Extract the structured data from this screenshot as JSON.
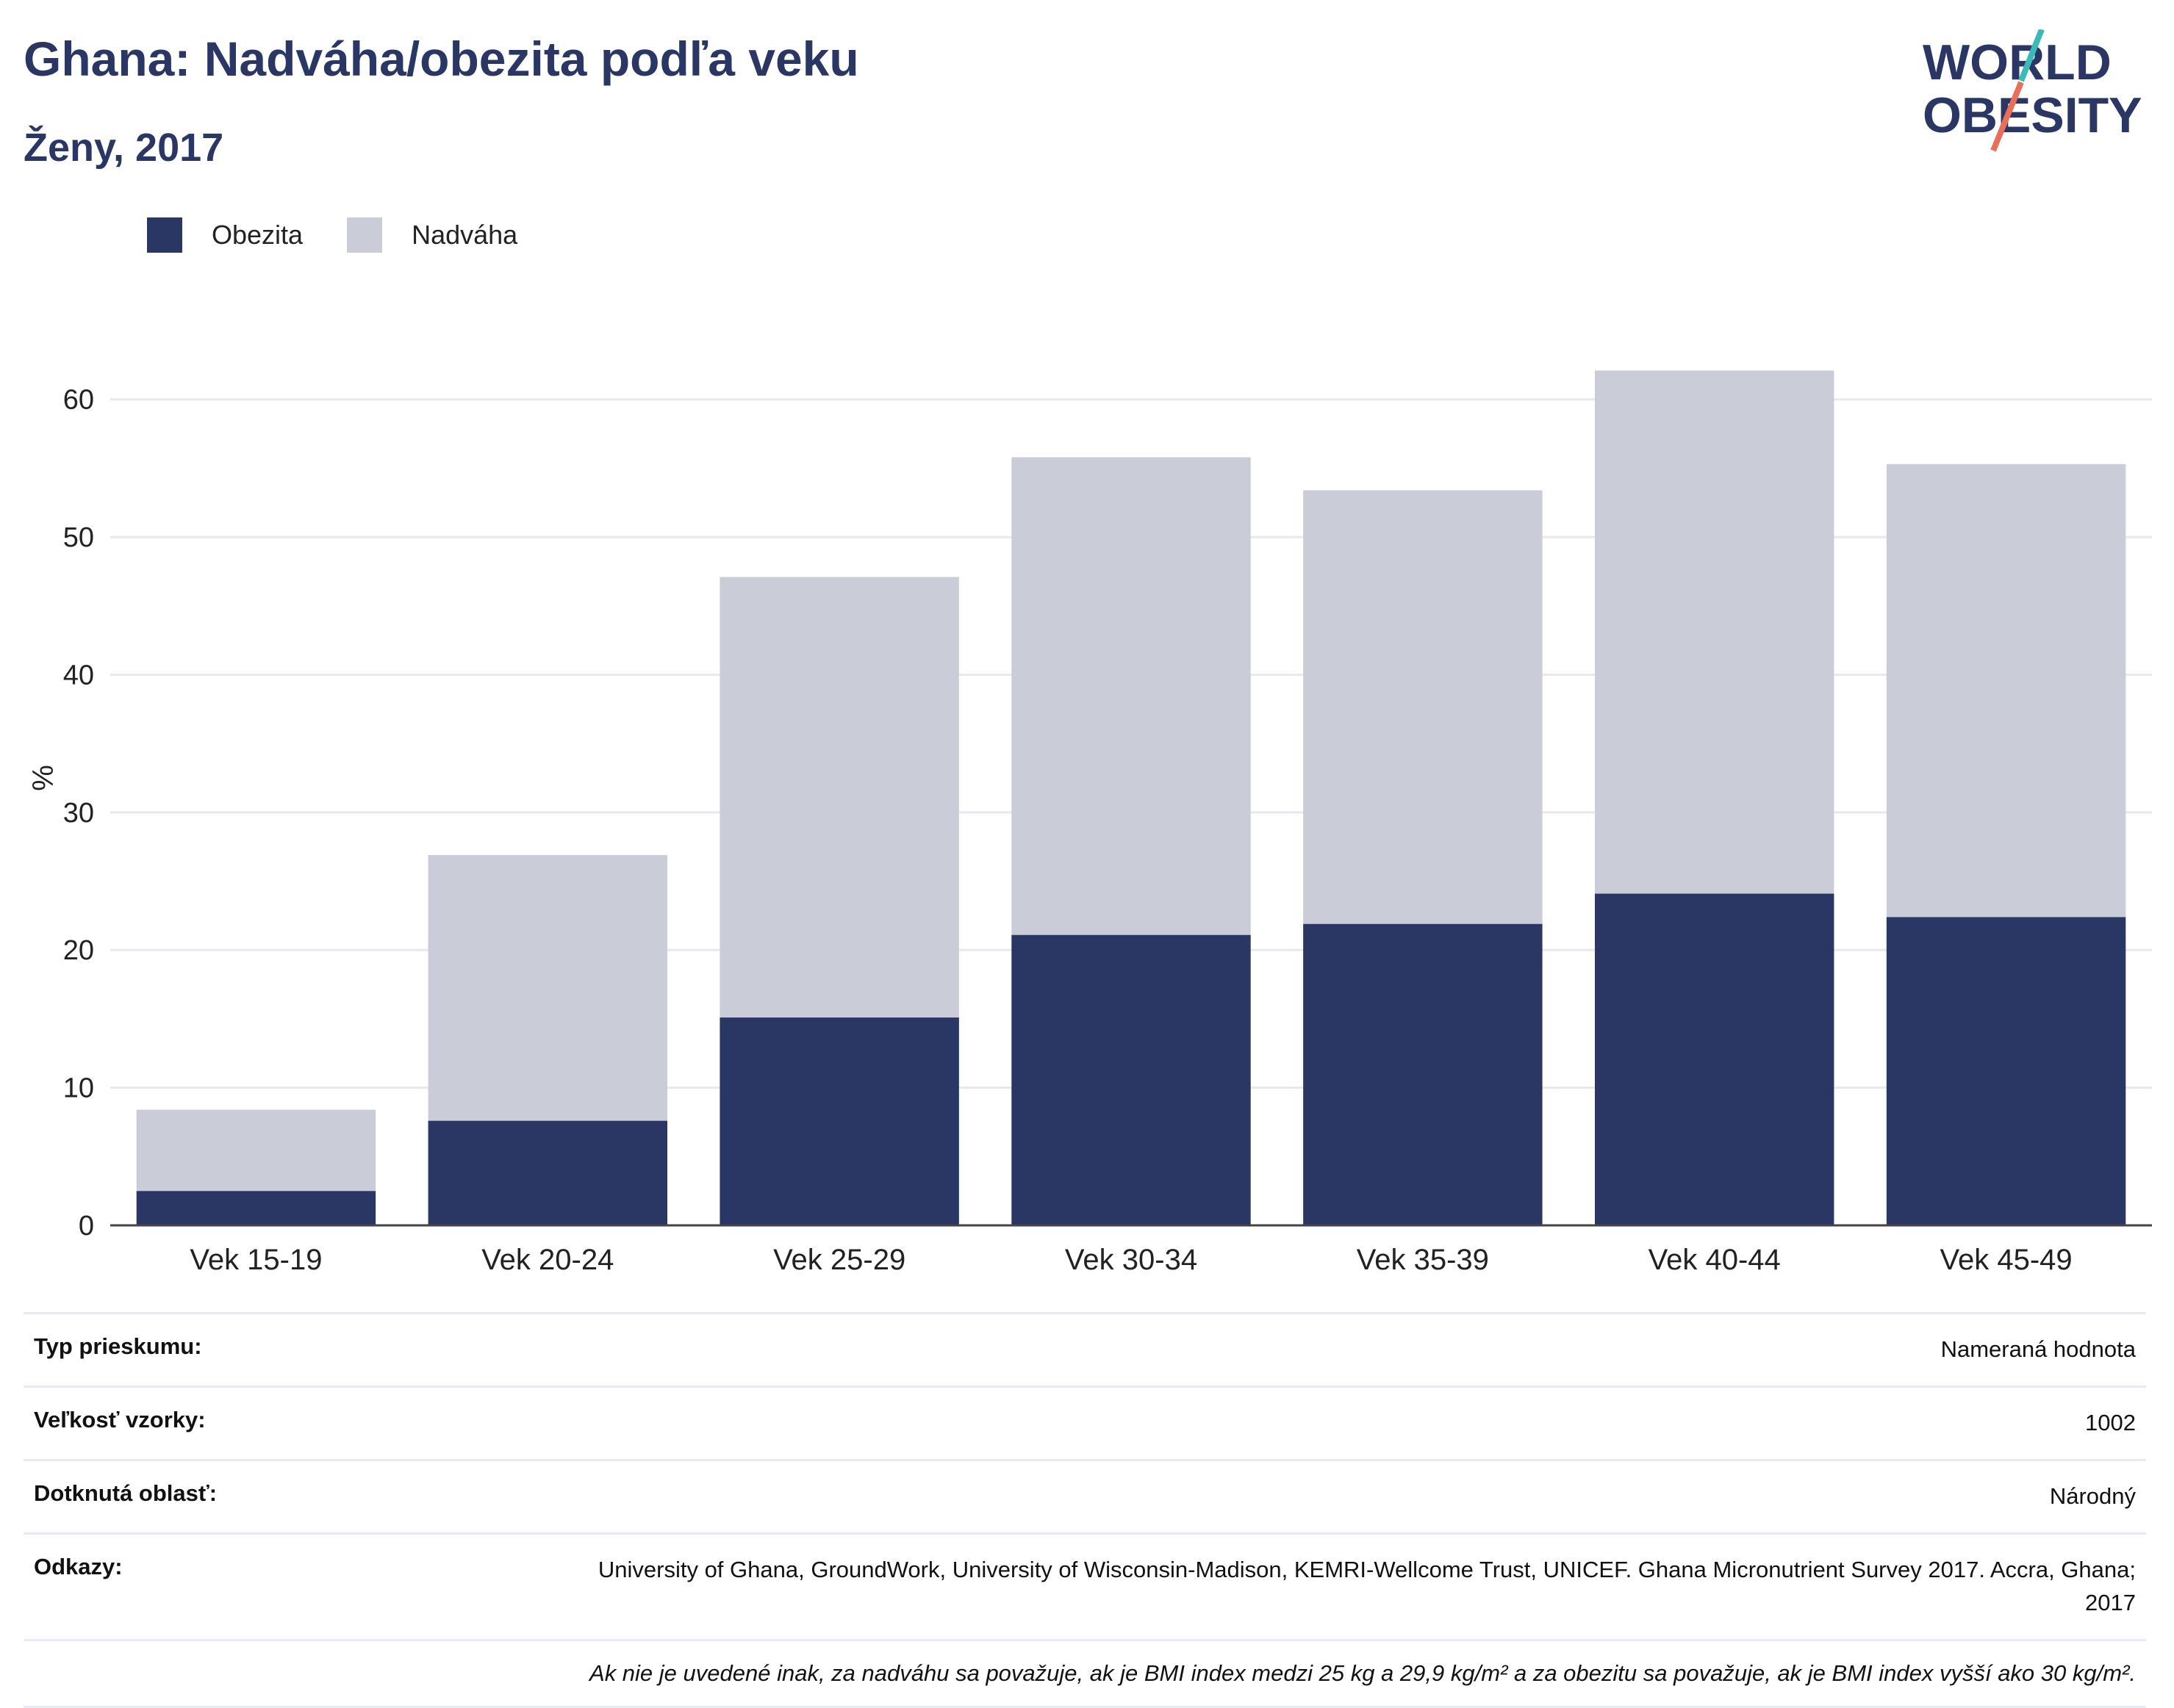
{
  "header": {
    "title": "Ghana: Nadváha/obezita podľa veku",
    "subtitle": "Ženy, 2017"
  },
  "logo": {
    "line1": "WORLD",
    "line2": "OBESITY"
  },
  "colors": {
    "obesity": "#2a3663",
    "overweight": "#cacdd8",
    "text": "#2a3663",
    "grid": "#e8e8ee",
    "accent_teal": "#3bbbb5",
    "accent_coral": "#e8705a"
  },
  "legend": {
    "items": [
      {
        "label": "Obezita",
        "color": "#2a3663"
      },
      {
        "label": "Nadváha",
        "color": "#cacdd8"
      }
    ]
  },
  "chart_data": {
    "type": "bar",
    "stacked": true,
    "categories": [
      "Vek 15-19",
      "Vek 20-24",
      "Vek 25-29",
      "Vek 30-34",
      "Vek 35-39",
      "Vek 40-44",
      "Vek 45-49"
    ],
    "series": [
      {
        "name": "Obezita",
        "values": [
          2.5,
          7.6,
          15.1,
          21.1,
          21.9,
          24.1,
          22.4
        ]
      },
      {
        "name": "Nadváha",
        "values": [
          5.9,
          19.3,
          32.0,
          34.7,
          31.5,
          38.0,
          32.9
        ]
      }
    ],
    "ylabel": "%",
    "ylim": [
      0,
      65
    ],
    "yticks": [
      0,
      10,
      20,
      30,
      40,
      50,
      60
    ],
    "grid": true,
    "legend_position": "top-left"
  },
  "info": {
    "rows": [
      {
        "key": "Typ prieskumu:",
        "value": "Nameraná hodnota"
      },
      {
        "key": "Veľkosť vzorky:",
        "value": "1002"
      },
      {
        "key": "Dotknutá oblasť:",
        "value": "Národný"
      },
      {
        "key": "Odkazy:",
        "value": "University of Ghana, GroundWork, University of Wisconsin-Madison, KEMRI-Wellcome Trust, UNICEF. Ghana Micronutrient Survey 2017. Accra, Ghana; 2017"
      }
    ],
    "note": "Ak nie je uvedené inak, za nadváhu sa považuje, ak je BMI index medzi 25 kg a 29,9 kg/m² a za obezitu sa považuje, ak je BMI index vyšší ako 30 kg/m²."
  }
}
